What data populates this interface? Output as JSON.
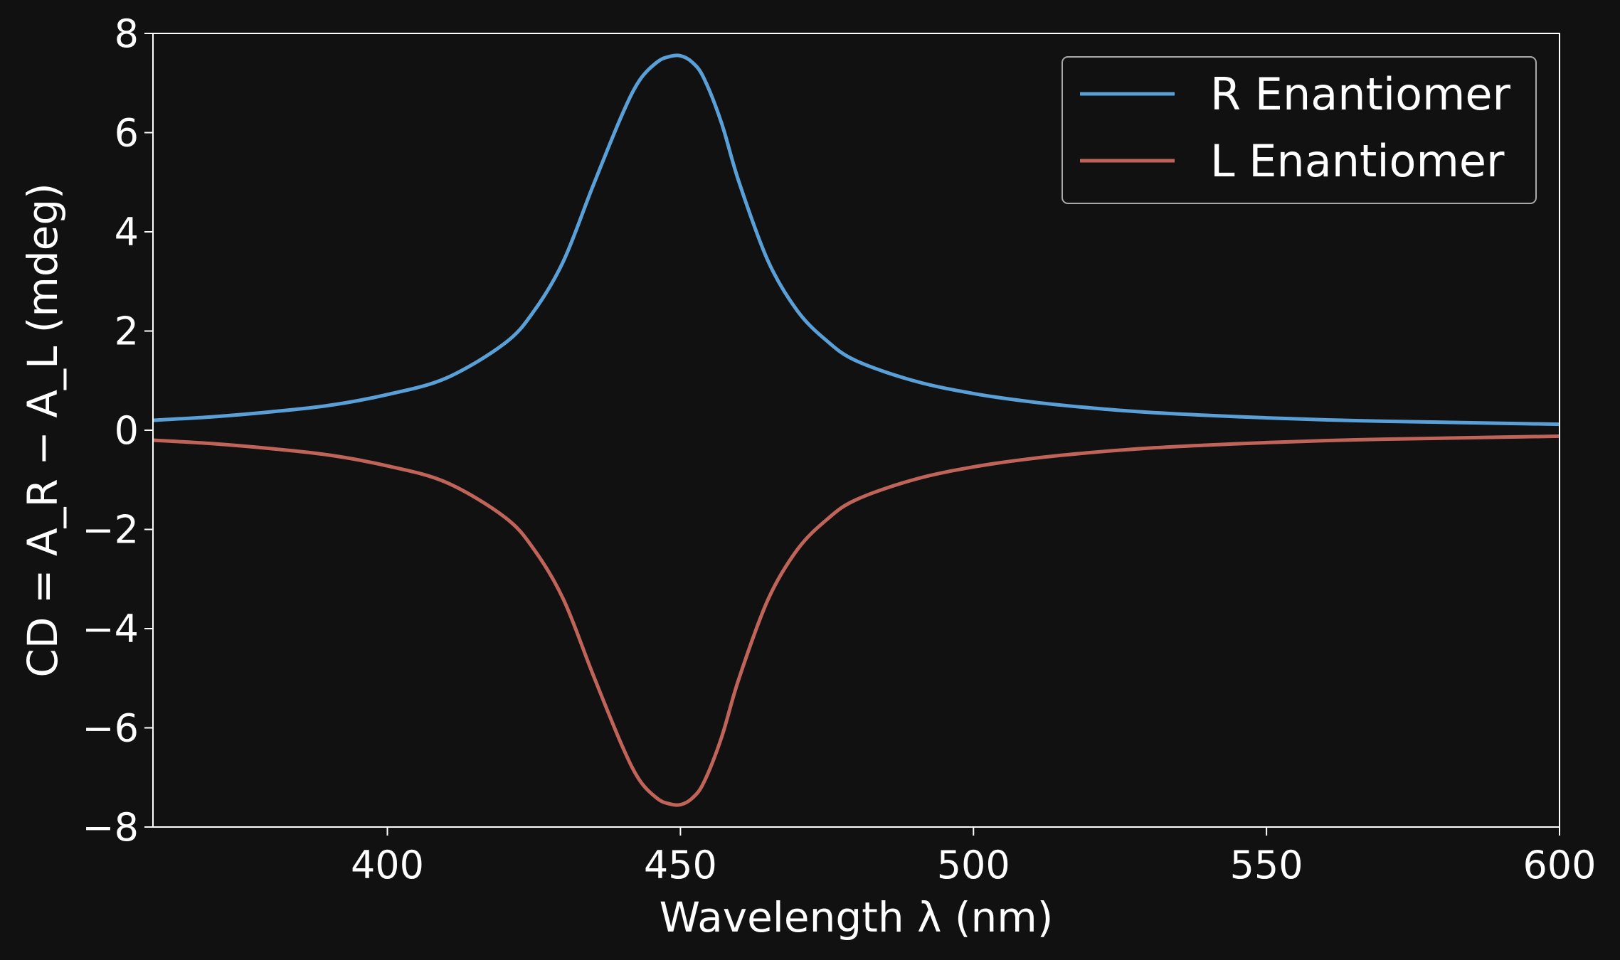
{
  "chart_data": {
    "type": "line",
    "xlabel": "Wavelength λ (nm)",
    "ylabel": "CD = A_R − A_L (mdeg)",
    "xlim": [
      360,
      600
    ],
    "ylim": [
      -8,
      8
    ],
    "x_ticks": [
      400,
      450,
      500,
      550,
      600
    ],
    "x_tick_labels": [
      "400",
      "450",
      "500",
      "550",
      "600"
    ],
    "y_ticks": [
      -8,
      -6,
      -4,
      -2,
      0,
      2,
      4,
      6,
      8
    ],
    "y_tick_labels": [
      "−8",
      "−6",
      "−4",
      "−2",
      "0",
      "2",
      "4",
      "6",
      "8"
    ],
    "grid": false,
    "legend_position": "top-right",
    "x": [
      360,
      370,
      380,
      390,
      400,
      410,
      420,
      425,
      430,
      435,
      440,
      443,
      446,
      448,
      450,
      452,
      454,
      457,
      460,
      465,
      470,
      475,
      480,
      490,
      500,
      510,
      520,
      530,
      540,
      550,
      560,
      570,
      580,
      590,
      600
    ],
    "series": [
      {
        "name": "R Enantiomer",
        "color": "#5aa0d8",
        "values": [
          0.2,
          0.27,
          0.37,
          0.5,
          0.72,
          1.05,
          1.75,
          2.4,
          3.4,
          4.9,
          6.35,
          7.05,
          7.42,
          7.53,
          7.55,
          7.42,
          7.1,
          6.2,
          5.0,
          3.4,
          2.4,
          1.8,
          1.4,
          0.99,
          0.74,
          0.57,
          0.45,
          0.36,
          0.3,
          0.25,
          0.21,
          0.18,
          0.16,
          0.14,
          0.12
        ]
      },
      {
        "name": "L Enantiomer",
        "color": "#c0645a",
        "values": [
          -0.2,
          -0.27,
          -0.37,
          -0.5,
          -0.72,
          -1.05,
          -1.75,
          -2.4,
          -3.4,
          -4.9,
          -6.35,
          -7.05,
          -7.42,
          -7.53,
          -7.55,
          -7.42,
          -7.1,
          -6.2,
          -5.0,
          -3.4,
          -2.4,
          -1.8,
          -1.4,
          -0.99,
          -0.74,
          -0.57,
          -0.45,
          -0.36,
          -0.3,
          -0.25,
          -0.21,
          -0.18,
          -0.16,
          -0.14,
          -0.12
        ]
      }
    ]
  },
  "colors": {
    "background": "#111111",
    "axes": "#ffffff",
    "legend_border": "#aaaaaa"
  }
}
